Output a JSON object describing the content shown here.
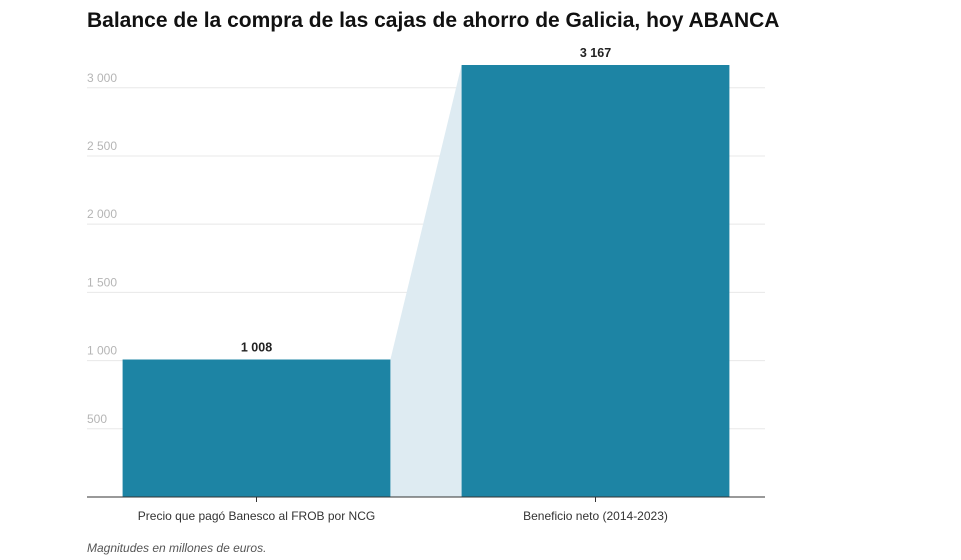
{
  "chart_data": {
    "type": "bar",
    "title": "Balance de la compra de las cajas de ahorro de Galicia, hoy ABANCA",
    "categories": [
      "Precio que pagó Banesco al FROB por NCG",
      "Beneficio neto (2014-2023)"
    ],
    "values": [
      1008,
      3167
    ],
    "value_labels": [
      "1 008",
      "3 167"
    ],
    "yticks": [
      500,
      1000,
      1500,
      2000,
      2500,
      3000
    ],
    "ytick_labels": [
      "500",
      "1 000",
      "1 500",
      "2 000",
      "2 500",
      "3 000"
    ],
    "ylim": [
      0,
      3167
    ],
    "grid": true,
    "legend": "none",
    "note": "Magnitudes en millones de euros.",
    "colors": {
      "bar": "#1d84a4",
      "connector": "#deebf2",
      "grid": "#e8e8e8",
      "axis": "#333333"
    }
  }
}
